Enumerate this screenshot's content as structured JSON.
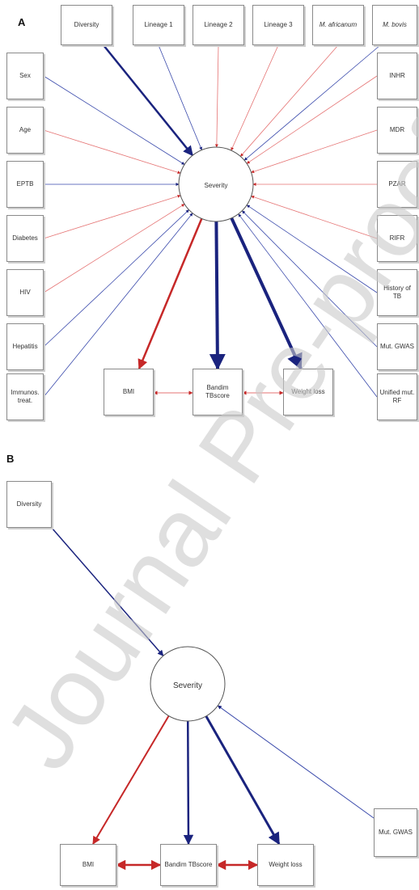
{
  "panels": {
    "a": {
      "label": "A",
      "top_boxes": [
        "Diversity",
        "Lineage 1",
        "Lineage 2",
        "Lineage 3",
        "M. africanum",
        "M. bovis"
      ],
      "left_boxes": [
        "Sex",
        "Age",
        "EPTB",
        "Diabetes",
        "HIV",
        "Hepatitis",
        "Immunos. treat."
      ],
      "right_boxes": [
        "INHR",
        "MDR",
        "PZAR",
        "RIFR",
        "History of TB",
        "Mut. GWAS",
        "Unified mut. RF"
      ],
      "bottom_boxes": [
        "BMI",
        "Bandim TBscore",
        "Weight loss"
      ],
      "center": "Severity"
    },
    "b": {
      "label": "B",
      "diversity": "Diversity",
      "center": "Severity",
      "mut_gwas": "Mut. GWAS",
      "bottom_boxes": [
        "BMI",
        "Bandim TBscore",
        "Weight loss"
      ]
    }
  },
  "watermark": "Journal Pre-proof",
  "colors": {
    "blue": "#1a237e",
    "red": "#c62828",
    "thin_blue": "#3949ab",
    "thin_red": "#e57373",
    "watermark": "#c9c9c9"
  }
}
